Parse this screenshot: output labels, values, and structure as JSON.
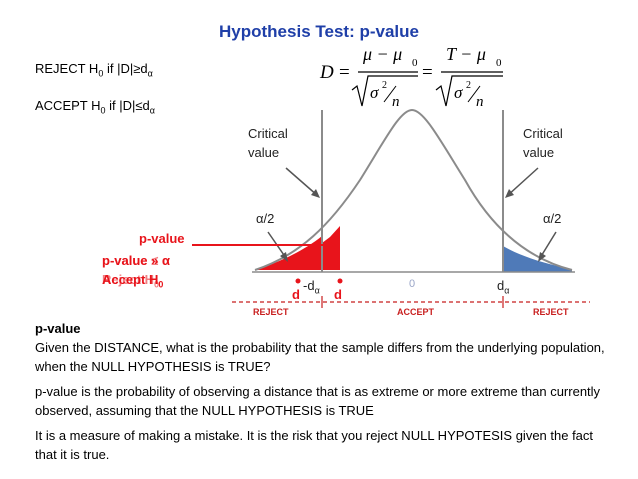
{
  "title": "Hypothesis Test: p-value",
  "rules": {
    "reject": {
      "prefix": "REJECT H",
      "sub": "0",
      "middle": " if |D|≥d",
      "sub2": "α"
    },
    "accept": {
      "prefix": "ACCEPT H",
      "sub": "0",
      "middle": " if |D|≤d",
      "sub2": "α"
    }
  },
  "formula": {
    "lhs": "D",
    "num1": "μ − μ",
    "num1_sub": "0",
    "num2": "T − μ",
    "num2_sub": "0",
    "sigma": "σ",
    "sq": "2",
    "n": "n",
    "eq": "="
  },
  "diagram": {
    "critical_left": [
      "Critical",
      "value"
    ],
    "critical_right": [
      "Critical",
      "value"
    ],
    "alpha_left": "α/2",
    "alpha_right": "α/2",
    "p_value_label": "p-value",
    "overlap_1": "p-value » α",
    "overlap_2": "p-value ≤ α",
    "overlap_3": "Accept H",
    "overlap_4": "Reject H",
    "overlap_sub": "0",
    "neg_d_alpha": "-d",
    "d_alpha": "d",
    "alpha_sub": "α",
    "zero": "0",
    "d_left": "d",
    "d_right": "d",
    "reject_left": "REJECT",
    "accept": "ACCEPT",
    "reject_right": "REJECT",
    "colors": {
      "red": "#e8141b",
      "blue": "#4f7ab8",
      "curve": "#8b8b8b",
      "axis": "#c81e1e"
    }
  },
  "body": {
    "heading": "p-value",
    "p1": "Given the DISTANCE, what is the probability that the sample differs from the underlying population, when the NULL HYPOTHESIS is TRUE?",
    "p2": "p-value is the probability of observing a distance that is as extreme or more extreme than currently observed, assuming that the NULL HYPOTHESIS is TRUE",
    "p3": "It is a measure of making a mistake. It is the risk that you reject NULL HYPOTESIS given the fact that it is true."
  }
}
